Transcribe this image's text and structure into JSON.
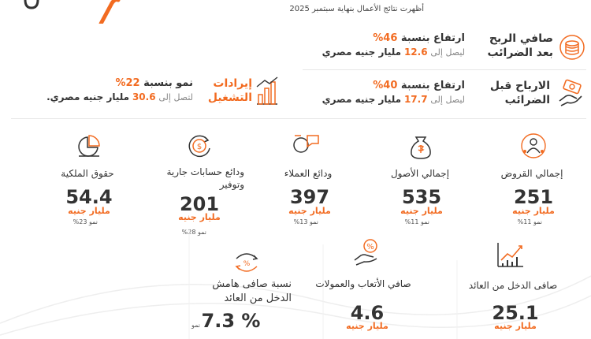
{
  "header": {
    "subtitle": "أظهرت نتائج الأعمال بنهاية سبتمبر 2025"
  },
  "highlights": [
    {
      "title_line1": "صافي الربح",
      "title_line2": "بعد الضرائب",
      "pct_prefix": "ارتفاع بنسبة",
      "pct": "46%",
      "lead": "ليصل إلى",
      "amount": "12.6",
      "unit": "مليار جنيه مصري",
      "icon": "coins-stack-icon"
    },
    {
      "title_line1": "الارباح قبل",
      "title_line2": "الضرائب",
      "pct_prefix": "ارتفاع بنسبة",
      "pct": "40%",
      "lead": "ليصل إلى",
      "amount": "17.7",
      "unit": "مليار جنيه مصري",
      "icon": "money-hand-icon"
    },
    {
      "title_line1": "إيرادات",
      "title_line2": "التشغيل",
      "pct_prefix": "نمو بنسبة",
      "pct": "22%",
      "lead": "لتصل إلى",
      "amount": "30.6",
      "unit": "مليار جنيه مصري.",
      "icon": "bar-growth-icon"
    }
  ],
  "kpis_row1": [
    {
      "label": "إجمالي القروض",
      "value": "251",
      "unit": "مليار جنيه",
      "growth": "نمو 11%",
      "icon": "people-network-icon"
    },
    {
      "label": "إجمالي الأصول",
      "value": "535",
      "unit": "مليار جنيه",
      "growth": "نمو 11%",
      "icon": "money-bag-icon"
    },
    {
      "label": "ودائع العملاء",
      "value": "397",
      "unit": "مليار جنيه",
      "growth": "نمو 13%",
      "icon": "hand-deposit-icon"
    },
    {
      "label_line1": "ودائع حسابات جارية",
      "label_line2": "وتوفير",
      "value": "201",
      "unit": "مليار جنيه",
      "growth": "نمو 28%",
      "icon": "dollar-cycle-icon"
    },
    {
      "label": "حقوق الملكية",
      "value": "54.4",
      "unit": "مليار جنيه",
      "growth": "نمو 23%",
      "icon": "pie-chart-icon"
    }
  ],
  "kpis_row2": [
    {
      "label": "صافى الدخل من العائد",
      "value": "25.1",
      "unit": "مليار جنيه",
      "icon": "growth-chart-icon"
    },
    {
      "label": "صافي الأتعاب والعمولات",
      "value": "4.6",
      "unit": "مليار جنيه",
      "icon": "hand-percent-icon"
    },
    {
      "label_line1": "نسبة صافى هامش",
      "label_line2": "الدخل من العائد",
      "value": "7.3 %",
      "growth_prefix": "نمو",
      "icon": "exchange-percent-icon"
    }
  ],
  "colors": {
    "accent": "#f26b21",
    "text": "#333333"
  }
}
